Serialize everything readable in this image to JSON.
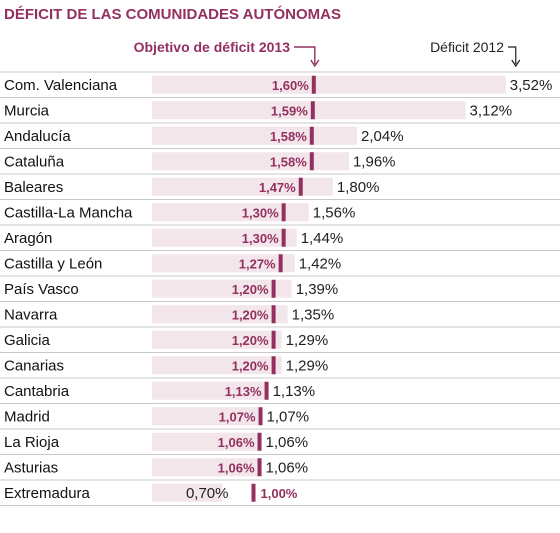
{
  "title": "DÉFICIT DE LAS COMUNIDADES AUTÓNOMAS",
  "colors": {
    "accent": "#93305f",
    "bar": "#f3e6ea",
    "row_border": "#c8c8c8",
    "text": "#111111"
  },
  "chart_data": {
    "type": "bar",
    "orientation": "horizontal",
    "categories": [
      "Com. Valenciana",
      "Murcia",
      "Andalucía",
      "Cataluña",
      "Baleares",
      "Castilla-La Mancha",
      "Aragón",
      "Castilla y León",
      "País Vasco",
      "Navarra",
      "Galicia",
      "Canarias",
      "Cantabria",
      "Madrid",
      "La Rioja",
      "Asturias",
      "Extremadura"
    ],
    "series": [
      {
        "name": "Déficit 2012",
        "values": [
          3.52,
          3.12,
          2.04,
          1.96,
          1.8,
          1.56,
          1.44,
          1.42,
          1.39,
          1.35,
          1.29,
          1.29,
          1.13,
          1.07,
          1.06,
          1.06,
          0.7
        ],
        "labels": [
          "3,52%",
          "3,12%",
          "2,04%",
          "1,96%",
          "1,80%",
          "1,56%",
          "1,44%",
          "1,42%",
          "1,39%",
          "1,35%",
          "1,29%",
          "1,29%",
          "1,13%",
          "1,07%",
          "1,06%",
          "1,06%",
          "0,70%"
        ]
      },
      {
        "name": "Objetivo de déficit 2013",
        "values": [
          1.6,
          1.59,
          1.58,
          1.58,
          1.47,
          1.3,
          1.3,
          1.27,
          1.2,
          1.2,
          1.2,
          1.2,
          1.13,
          1.07,
          1.06,
          1.06,
          1.0
        ],
        "labels": [
          "1,60%",
          "1,59%",
          "1,58%",
          "1,58%",
          "1,47%",
          "1,30%",
          "1,30%",
          "1,27%",
          "1,20%",
          "1,20%",
          "1,20%",
          "1,20%",
          "1,13%",
          "1,07%",
          "1,06%",
          "1,06%",
          "1,00%"
        ]
      }
    ],
    "xlim": [
      0,
      3.52
    ],
    "grid": false,
    "legend": "top"
  }
}
